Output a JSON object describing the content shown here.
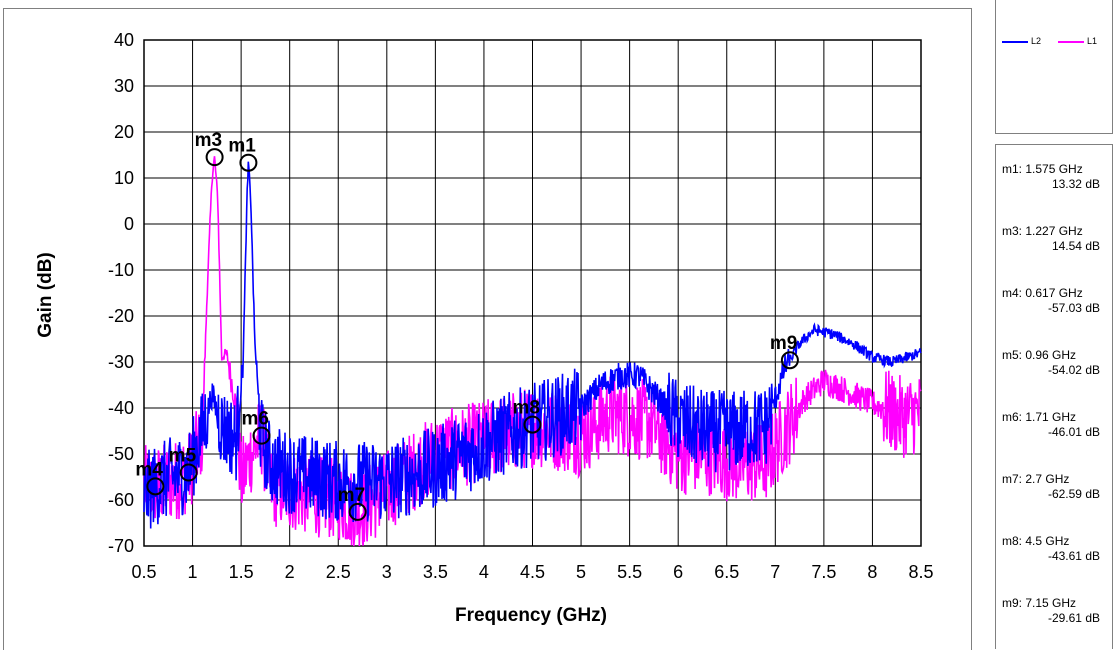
{
  "chart_data": {
    "type": "line",
    "title": "",
    "xlabel": "Frequency (GHz)",
    "ylabel": "Gain (dB)",
    "xlim": [
      0.5,
      8.5
    ],
    "ylim": [
      -70,
      40
    ],
    "x_ticks": [
      "0.5",
      "1",
      "1.5",
      "2",
      "2.5",
      "3",
      "3.5",
      "4",
      "4.5",
      "5",
      "5.5",
      "6",
      "6.5",
      "7",
      "7.5",
      "8",
      "8.5"
    ],
    "y_ticks": [
      "40",
      "30",
      "20",
      "10",
      "0",
      "-10",
      "-20",
      "-30",
      "-40",
      "-50",
      "-60",
      "-70"
    ],
    "grid": true,
    "legend_position": "right",
    "series": [
      {
        "name": "L2",
        "color": "#0000ff",
        "x": [
          0.5,
          0.6,
          0.8,
          0.95,
          1.1,
          1.2,
          1.3,
          1.45,
          1.52,
          1.56,
          1.575,
          1.6,
          1.64,
          1.7,
          1.8,
          2.0,
          2.5,
          3.0,
          3.5,
          4.0,
          4.3,
          4.5,
          4.7,
          5.0,
          5.2,
          5.4,
          5.6,
          5.8,
          6.0,
          6.3,
          6.6,
          6.9,
          7.0,
          7.1,
          7.15,
          7.25,
          7.4,
          7.6,
          7.8,
          8.0,
          8.2,
          8.5
        ],
        "y": [
          -59,
          -57,
          -55,
          -54,
          -45,
          -37,
          -44,
          -47,
          -30,
          5,
          13.3,
          5,
          -25,
          -46,
          -52,
          -54,
          -56,
          -56,
          -53,
          -48,
          -45,
          -43.6,
          -42,
          -40,
          -35,
          -33,
          -33,
          -38,
          -43,
          -45,
          -45,
          -44,
          -38,
          -31,
          -29.6,
          -26,
          -23,
          -24,
          -26,
          -29,
          -30,
          -28
        ]
      },
      {
        "name": "L1",
        "color": "#ff00ff",
        "x": [
          0.5,
          0.6,
          0.8,
          0.96,
          1.1,
          1.15,
          1.2,
          1.227,
          1.26,
          1.3,
          1.35,
          1.45,
          1.5,
          1.6,
          1.71,
          1.8,
          2.0,
          2.5,
          2.7,
          3.0,
          3.5,
          4.0,
          4.5,
          4.8,
          5.0,
          5.3,
          5.5,
          5.7,
          6.0,
          6.3,
          6.6,
          6.9,
          7.1,
          7.3,
          7.5,
          7.7,
          8.0,
          8.3,
          8.5
        ],
        "y": [
          -57,
          -57,
          -56,
          -54,
          -46,
          -15,
          10,
          14.5,
          5,
          -29,
          -28,
          -40,
          -56,
          -50,
          -46,
          -57,
          -58,
          -60,
          -62.6,
          -58,
          -50,
          -47,
          -44,
          -45,
          -46,
          -41,
          -42,
          -43,
          -50,
          -50,
          -52,
          -52,
          -45,
          -38,
          -34,
          -36,
          -39,
          -42,
          -41
        ]
      }
    ],
    "markers": [
      {
        "label": "m1",
        "x": 1.575,
        "y": 13.32,
        "readout_freq": "1.575 GHz",
        "readout_gain": "13.32 dB"
      },
      {
        "label": "m3",
        "x": 1.227,
        "y": 14.54,
        "readout_freq": "1.227 GHz",
        "readout_gain": "14.54 dB"
      },
      {
        "label": "m4",
        "x": 0.617,
        "y": -57.03,
        "readout_freq": "0.617 GHz",
        "readout_gain": "-57.03 dB"
      },
      {
        "label": "m5",
        "x": 0.96,
        "y": -54.02,
        "readout_freq": "0.96 GHz",
        "readout_gain": "-54.02 dB"
      },
      {
        "label": "m6",
        "x": 1.71,
        "y": -46.01,
        "readout_freq": "1.71 GHz",
        "readout_gain": "-46.01 dB"
      },
      {
        "label": "m7",
        "x": 2.7,
        "y": -62.59,
        "readout_freq": "2.7 GHz",
        "readout_gain": "-62.59 dB"
      },
      {
        "label": "m8",
        "x": 4.5,
        "y": -43.61,
        "readout_freq": "4.5 GHz",
        "readout_gain": "-43.61 dB"
      },
      {
        "label": "m9",
        "x": 7.15,
        "y": -29.61,
        "readout_freq": "7.15 GHz",
        "readout_gain": "-29.61 dB"
      }
    ]
  }
}
